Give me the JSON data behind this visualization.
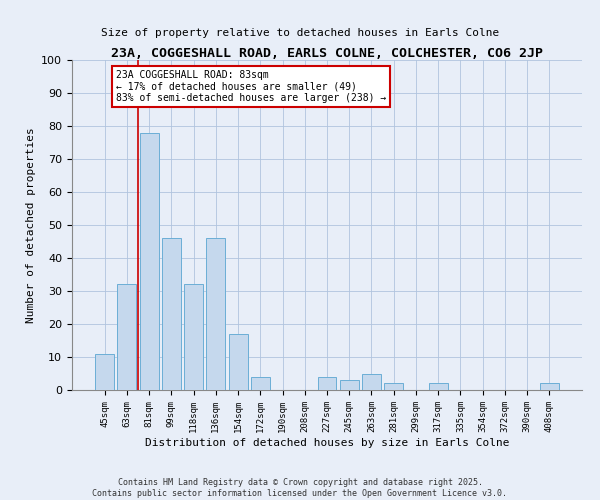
{
  "title": "23A, COGGESHALL ROAD, EARLS COLNE, COLCHESTER, CO6 2JP",
  "subtitle": "Size of property relative to detached houses in Earls Colne",
  "xlabel": "Distribution of detached houses by size in Earls Colne",
  "ylabel": "Number of detached properties",
  "bin_labels": [
    "45sqm",
    "63sqm",
    "81sqm",
    "99sqm",
    "118sqm",
    "136sqm",
    "154sqm",
    "172sqm",
    "190sqm",
    "208sqm",
    "227sqm",
    "245sqm",
    "263sqm",
    "281sqm",
    "299sqm",
    "317sqm",
    "335sqm",
    "354sqm",
    "372sqm",
    "390sqm",
    "408sqm"
  ],
  "bar_heights": [
    11,
    32,
    78,
    46,
    32,
    46,
    17,
    4,
    0,
    0,
    4,
    3,
    5,
    2,
    0,
    2,
    0,
    0,
    0,
    0,
    2
  ],
  "bar_color": "#c5d8ed",
  "bar_edge_color": "#6baed6",
  "vline_color": "#cc0000",
  "ylim": [
    0,
    100
  ],
  "annotation_text": "23A COGGESHALL ROAD: 83sqm\n← 17% of detached houses are smaller (49)\n83% of semi-detached houses are larger (238) →",
  "annotation_box_color": "#ffffff",
  "annotation_box_edge_color": "#cc0000",
  "footer_line1": "Contains HM Land Registry data © Crown copyright and database right 2025.",
  "footer_line2": "Contains public sector information licensed under the Open Government Licence v3.0.",
  "background_color": "#e8eef8",
  "grid_color": "#b0c4de"
}
